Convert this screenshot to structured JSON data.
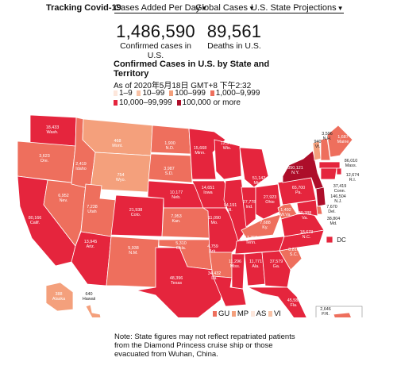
{
  "nav": {
    "brand": "Tracking Covid-19",
    "tabs": [
      {
        "label": "Cases Added Per Day",
        "has_caret": true
      },
      {
        "label": "Global Cases",
        "has_caret": true
      },
      {
        "label": "U.S. State Projections",
        "has_caret": true
      }
    ]
  },
  "stats": {
    "confirmed": {
      "value": "1,486,590",
      "label": "Confirmed cases in U.S."
    },
    "deaths": {
      "value": "89,561",
      "label": "Deaths in U.S."
    }
  },
  "map_title": "Confirmed Cases in U.S. by State and Territory",
  "as_of": "As of 2020年5月18日 GMT+8 下午2:32",
  "legend": [
    {
      "label": "1–9",
      "color": "#fde7dc"
    },
    {
      "label": "10–99",
      "color": "#f9c2a6"
    },
    {
      "label": "100–999",
      "color": "#f4a07c"
    },
    {
      "label": "1,000–9,999",
      "color": "#ee6f5d"
    },
    {
      "label": "10,000–99,999",
      "color": "#e5253d"
    },
    {
      "label": "100,000 or more",
      "color": "#ad0e2a"
    }
  ],
  "states": [
    {
      "abbr": "Wash.",
      "value": "18,433"
    },
    {
      "abbr": "Ore.",
      "value": "3,623"
    },
    {
      "abbr": "Calif.",
      "value": "80,166"
    },
    {
      "abbr": "Nev.",
      "value": "6,952"
    },
    {
      "abbr": "Idaho",
      "value": "2,419"
    },
    {
      "abbr": "Mont.",
      "value": "468"
    },
    {
      "abbr": "Wyo.",
      "value": "754"
    },
    {
      "abbr": "Utah",
      "value": "7,238"
    },
    {
      "abbr": "Ariz.",
      "value": "13,945"
    },
    {
      "abbr": "Colo.",
      "value": "21,938"
    },
    {
      "abbr": "N.M.",
      "value": "5,938"
    },
    {
      "abbr": "N.D.",
      "value": "1,900"
    },
    {
      "abbr": "S.D.",
      "value": "3,987"
    },
    {
      "abbr": "Neb.",
      "value": "10,177"
    },
    {
      "abbr": "Kan.",
      "value": "7,953"
    },
    {
      "abbr": "Okla.",
      "value": "5,310"
    },
    {
      "abbr": "Texas",
      "value": "48,396"
    },
    {
      "abbr": "Minn.",
      "value": "15,668"
    },
    {
      "abbr": "Iowa",
      "value": "14,651"
    },
    {
      "abbr": "Mo.",
      "value": "11,090"
    },
    {
      "abbr": "Ark.",
      "value": "4,759"
    },
    {
      "abbr": "La.",
      "value": "34,432"
    },
    {
      "abbr": "Wis.",
      "value": "12,543"
    },
    {
      "abbr": "Ill.",
      "value": "94,191"
    },
    {
      "abbr": "Mich.",
      "value": "51,142"
    },
    {
      "abbr": "Ind.",
      "value": "27,778"
    },
    {
      "abbr": "Ohio",
      "value": "27,923"
    },
    {
      "abbr": "Ky.",
      "value": "7,688"
    },
    {
      "abbr": "Tenn.",
      "value": "17,359"
    },
    {
      "abbr": "Miss.",
      "value": "11,296"
    },
    {
      "abbr": "Ala.",
      "value": "11,771"
    },
    {
      "abbr": "Ga.",
      "value": "37,579"
    },
    {
      "abbr": "Fla.",
      "value": "45,588"
    },
    {
      "abbr": "S.C.",
      "value": "8,816"
    },
    {
      "abbr": "N.C.",
      "value": "18,673"
    },
    {
      "abbr": "Va.",
      "value": "30,388"
    },
    {
      "abbr": "W.Va.",
      "value": "1,492"
    },
    {
      "abbr": "Pa.",
      "value": "65,700"
    },
    {
      "abbr": "N.Y.",
      "value": "350,121"
    },
    {
      "abbr": "Vt.",
      "value": "940"
    },
    {
      "abbr": "N.H.",
      "value": "3,596"
    },
    {
      "abbr": "Maine",
      "value": "1,687"
    },
    {
      "abbr": "Mass.",
      "value": "86,010"
    },
    {
      "abbr": "R.I.",
      "value": "12,674"
    },
    {
      "abbr": "Conn.",
      "value": "37,419"
    },
    {
      "abbr": "N.J.",
      "value": "146,504"
    },
    {
      "abbr": "Del.",
      "value": "7,670"
    },
    {
      "abbr": "Md.",
      "value": "38,804"
    },
    {
      "abbr": "Alaska",
      "value": "388"
    },
    {
      "abbr": "Hawaii",
      "value": "640"
    },
    {
      "abbr": "P.R.",
      "value": "2,646"
    }
  ],
  "dc_label": "DC",
  "territories": [
    "GU",
    "MP",
    "AS",
    "VI"
  ],
  "note": "Note: State figures may not reflect repatriated patients from the Diamond Princess cruise ship or those evacuated from Wuhan, China."
}
